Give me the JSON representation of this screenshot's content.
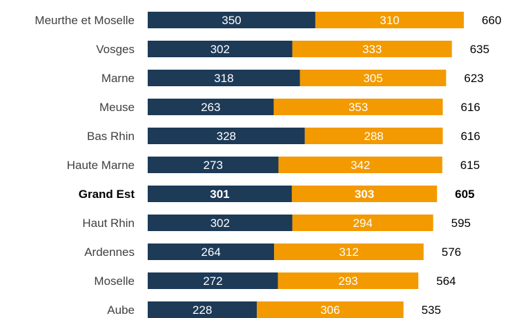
{
  "chart_data": {
    "type": "bar",
    "orientation": "horizontal",
    "stacked": true,
    "title": "",
    "xlabel": "",
    "ylabel": "",
    "grid": false,
    "legend": "none",
    "categories": [
      "Meurthe et Moselle",
      "Vosges",
      "Marne",
      "Meuse",
      "Bas Rhin",
      "Haute Marne",
      "Grand Est",
      "Haut Rhin",
      "Ardennes",
      "Moselle",
      "Aube"
    ],
    "highlight_category": "Grand Est",
    "series": [
      {
        "color": "#1d3a57",
        "values": [
          350,
          302,
          318,
          263,
          328,
          273,
          301,
          302,
          264,
          272,
          228
        ]
      },
      {
        "color": "#f39a00",
        "values": [
          310,
          333,
          305,
          353,
          288,
          342,
          303,
          294,
          312,
          293,
          306
        ]
      }
    ],
    "totals": [
      660,
      635,
      623,
      616,
      616,
      615,
      605,
      595,
      576,
      564,
      535
    ],
    "xlim": [
      0,
      700
    ]
  }
}
